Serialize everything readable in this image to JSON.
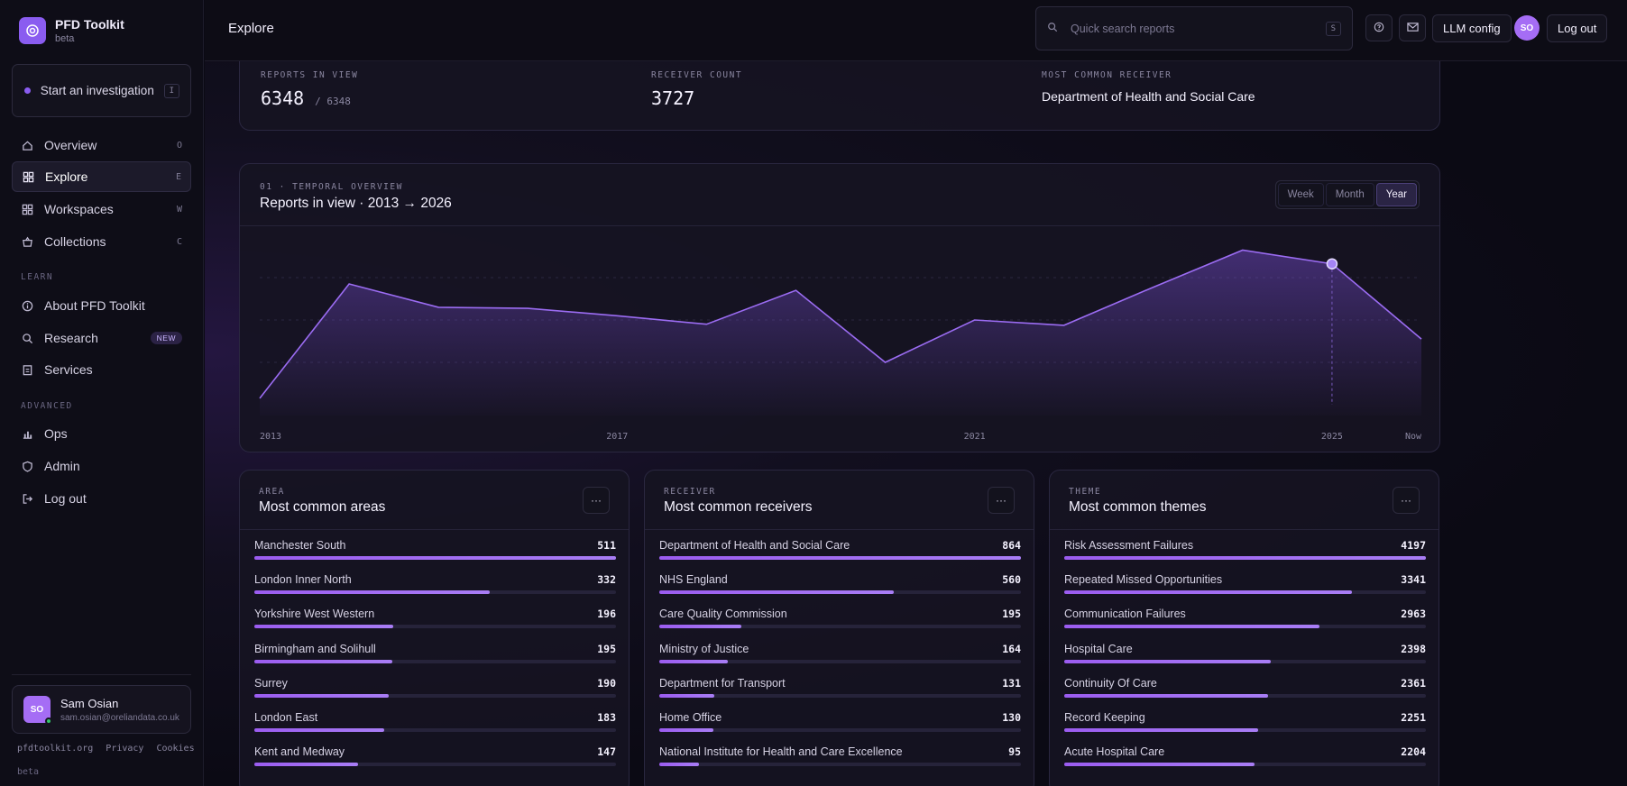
{
  "brand": {
    "name": "PFD Toolkit",
    "sub": "beta",
    "icon": "target-icon"
  },
  "start": {
    "label": "Start an investigation",
    "key": "I"
  },
  "nav": [
    {
      "label": "Overview",
      "key": "O",
      "icon": "home-icon"
    },
    {
      "label": "Explore",
      "key": "E",
      "icon": "grid-icon",
      "active": true
    },
    {
      "label": "Workspaces",
      "key": "W",
      "icon": "grid-icon"
    },
    {
      "label": "Collections",
      "key": "C",
      "icon": "basket-icon"
    }
  ],
  "learn_label": "LEARN",
  "learn": [
    {
      "label": "About PFD Toolkit",
      "icon": "info-icon"
    },
    {
      "label": "Research",
      "badge": "NEW",
      "icon": "search-icon"
    },
    {
      "label": "Services",
      "icon": "clipboard-icon"
    }
  ],
  "advanced_label": "ADVANCED",
  "advanced": [
    {
      "label": "Ops",
      "icon": "bar-chart-icon"
    },
    {
      "label": "Admin",
      "icon": "shield-icon"
    },
    {
      "label": "Log out",
      "icon": "logout-icon"
    }
  ],
  "user": {
    "initials": "SO",
    "name": "Sam Osian",
    "email": "sam.osian@oreliandata.co.uk"
  },
  "footer": {
    "links": [
      "pfdtoolkit.org",
      "Privacy",
      "Cookies"
    ],
    "beta": "beta"
  },
  "topbar": {
    "title": "Explore",
    "search_placeholder": "Quick search reports",
    "search_key": "S",
    "llm_config": "LLM config",
    "avatar": "SO",
    "logout": "Log out"
  },
  "stats": {
    "reports_label": "REPORTS IN VIEW",
    "reports_value": "6348",
    "reports_total": "/ 6348",
    "receiver_label": "RECEIVER COUNT",
    "receiver_value": "3727",
    "common_label": "MOST COMMON RECEIVER",
    "common_value": "Department of Health and Social Care"
  },
  "chart": {
    "kicker": "01 · TEMPORAL OVERVIEW",
    "title": "Reports in view · 2013 → 2026",
    "ranges": [
      "Week",
      "Month",
      "Year"
    ],
    "active_range": "Year"
  },
  "chart_data": {
    "type": "area",
    "title": "Reports in view · 2013 → 2026",
    "x": [
      2013,
      2014,
      2015,
      2016,
      2017,
      2018,
      2019,
      2020,
      2021,
      2022,
      2023,
      2024,
      2025,
      2026
    ],
    "y": [
      30,
      570,
      460,
      455,
      420,
      380,
      540,
      200,
      400,
      375,
      555,
      730,
      665,
      310
    ],
    "x_tick_labels": [
      "2013",
      "2017",
      "2021",
      "2025",
      "Now"
    ],
    "x_tick_positions": [
      2013,
      2017,
      2021,
      2025,
      2026
    ],
    "ylim": [
      0,
      800
    ],
    "highlight_x": 2025,
    "color": "#9b6cf2",
    "grid": true
  },
  "panels": [
    {
      "kicker": "AREA",
      "title": "Most common areas",
      "rows": [
        {
          "label": "Manchester South",
          "value": 511
        },
        {
          "label": "London Inner North",
          "value": 332
        },
        {
          "label": "Yorkshire West Western",
          "value": 196
        },
        {
          "label": "Birmingham and Solihull",
          "value": 195
        },
        {
          "label": "Surrey",
          "value": 190
        },
        {
          "label": "London East",
          "value": 183
        },
        {
          "label": "Kent and Medway",
          "value": 147
        }
      ]
    },
    {
      "kicker": "RECEIVER",
      "title": "Most common receivers",
      "rows": [
        {
          "label": "Department of Health and Social Care",
          "value": 864
        },
        {
          "label": "NHS England",
          "value": 560
        },
        {
          "label": "Care Quality Commission",
          "value": 195
        },
        {
          "label": "Ministry of Justice",
          "value": 164
        },
        {
          "label": "Department for Transport",
          "value": 131
        },
        {
          "label": "Home Office",
          "value": 130
        },
        {
          "label": "National Institute for Health and Care Excellence",
          "value": 95
        }
      ]
    },
    {
      "kicker": "THEME",
      "title": "Most common themes",
      "rows": [
        {
          "label": "Risk Assessment Failures",
          "value": 4197
        },
        {
          "label": "Repeated Missed Opportunities",
          "value": 3341
        },
        {
          "label": "Communication Failures",
          "value": 2963
        },
        {
          "label": "Hospital Care",
          "value": 2398
        },
        {
          "label": "Continuity Of Care",
          "value": 2361
        },
        {
          "label": "Record Keeping",
          "value": 2251
        },
        {
          "label": "Acute Hospital Care",
          "value": 2204
        }
      ]
    }
  ],
  "more_icon": "more-horizontal-icon"
}
